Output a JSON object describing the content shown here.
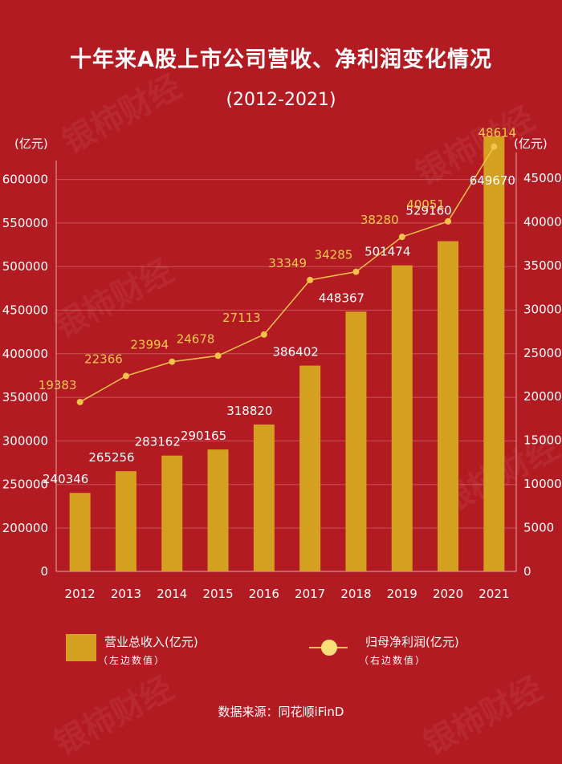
{
  "title": "十年来A股上市公司营收、净利润变化情况",
  "subtitle": "(2012-2021)",
  "left_unit": "(亿元)",
  "right_unit": "(亿元)",
  "legend": {
    "revenue_label": "营业总收入(亿元)",
    "revenue_sub": "（左边数值）",
    "profit_label": "归母净利润(亿元)",
    "profit_sub": "（右边数值）"
  },
  "source": "数据来源：同花顺iFinD",
  "watermark": "银柿财经",
  "colors": {
    "background": "#b31b22",
    "bar": "#d4a020",
    "line": "#f2c24a",
    "profit_label": "#f6c851"
  },
  "chart_data": {
    "type": "bar",
    "categories": [
      "2012",
      "2013",
      "2014",
      "2015",
      "2016",
      "2017",
      "2018",
      "2019",
      "2020",
      "2021"
    ],
    "series": [
      {
        "values": [
          240346,
          265256,
          283162,
          290165,
          318820,
          386402,
          448367,
          501474,
          529160,
          649670
        ],
        "type": "bar",
        "axis": "left"
      },
      {
        "values": [
          19383,
          22366,
          23994,
          24678,
          27113,
          33349,
          34285,
          38280,
          40051,
          48614
        ],
        "type": "line",
        "axis": "right"
      }
    ],
    "left_axis": {
      "ticks": [
        "0",
        "200000",
        "250000",
        "300000",
        "350000",
        "400000",
        "450000",
        "500000",
        "550000",
        "600000"
      ]
    },
    "right_axis": {
      "ticks": [
        "0",
        "5000",
        "10000",
        "15000",
        "20000",
        "25000",
        "30000",
        "35000",
        "40000",
        "45000"
      ],
      "ylim": [
        0,
        45000
      ]
    },
    "grid": true,
    "legend_position": "bottom"
  }
}
